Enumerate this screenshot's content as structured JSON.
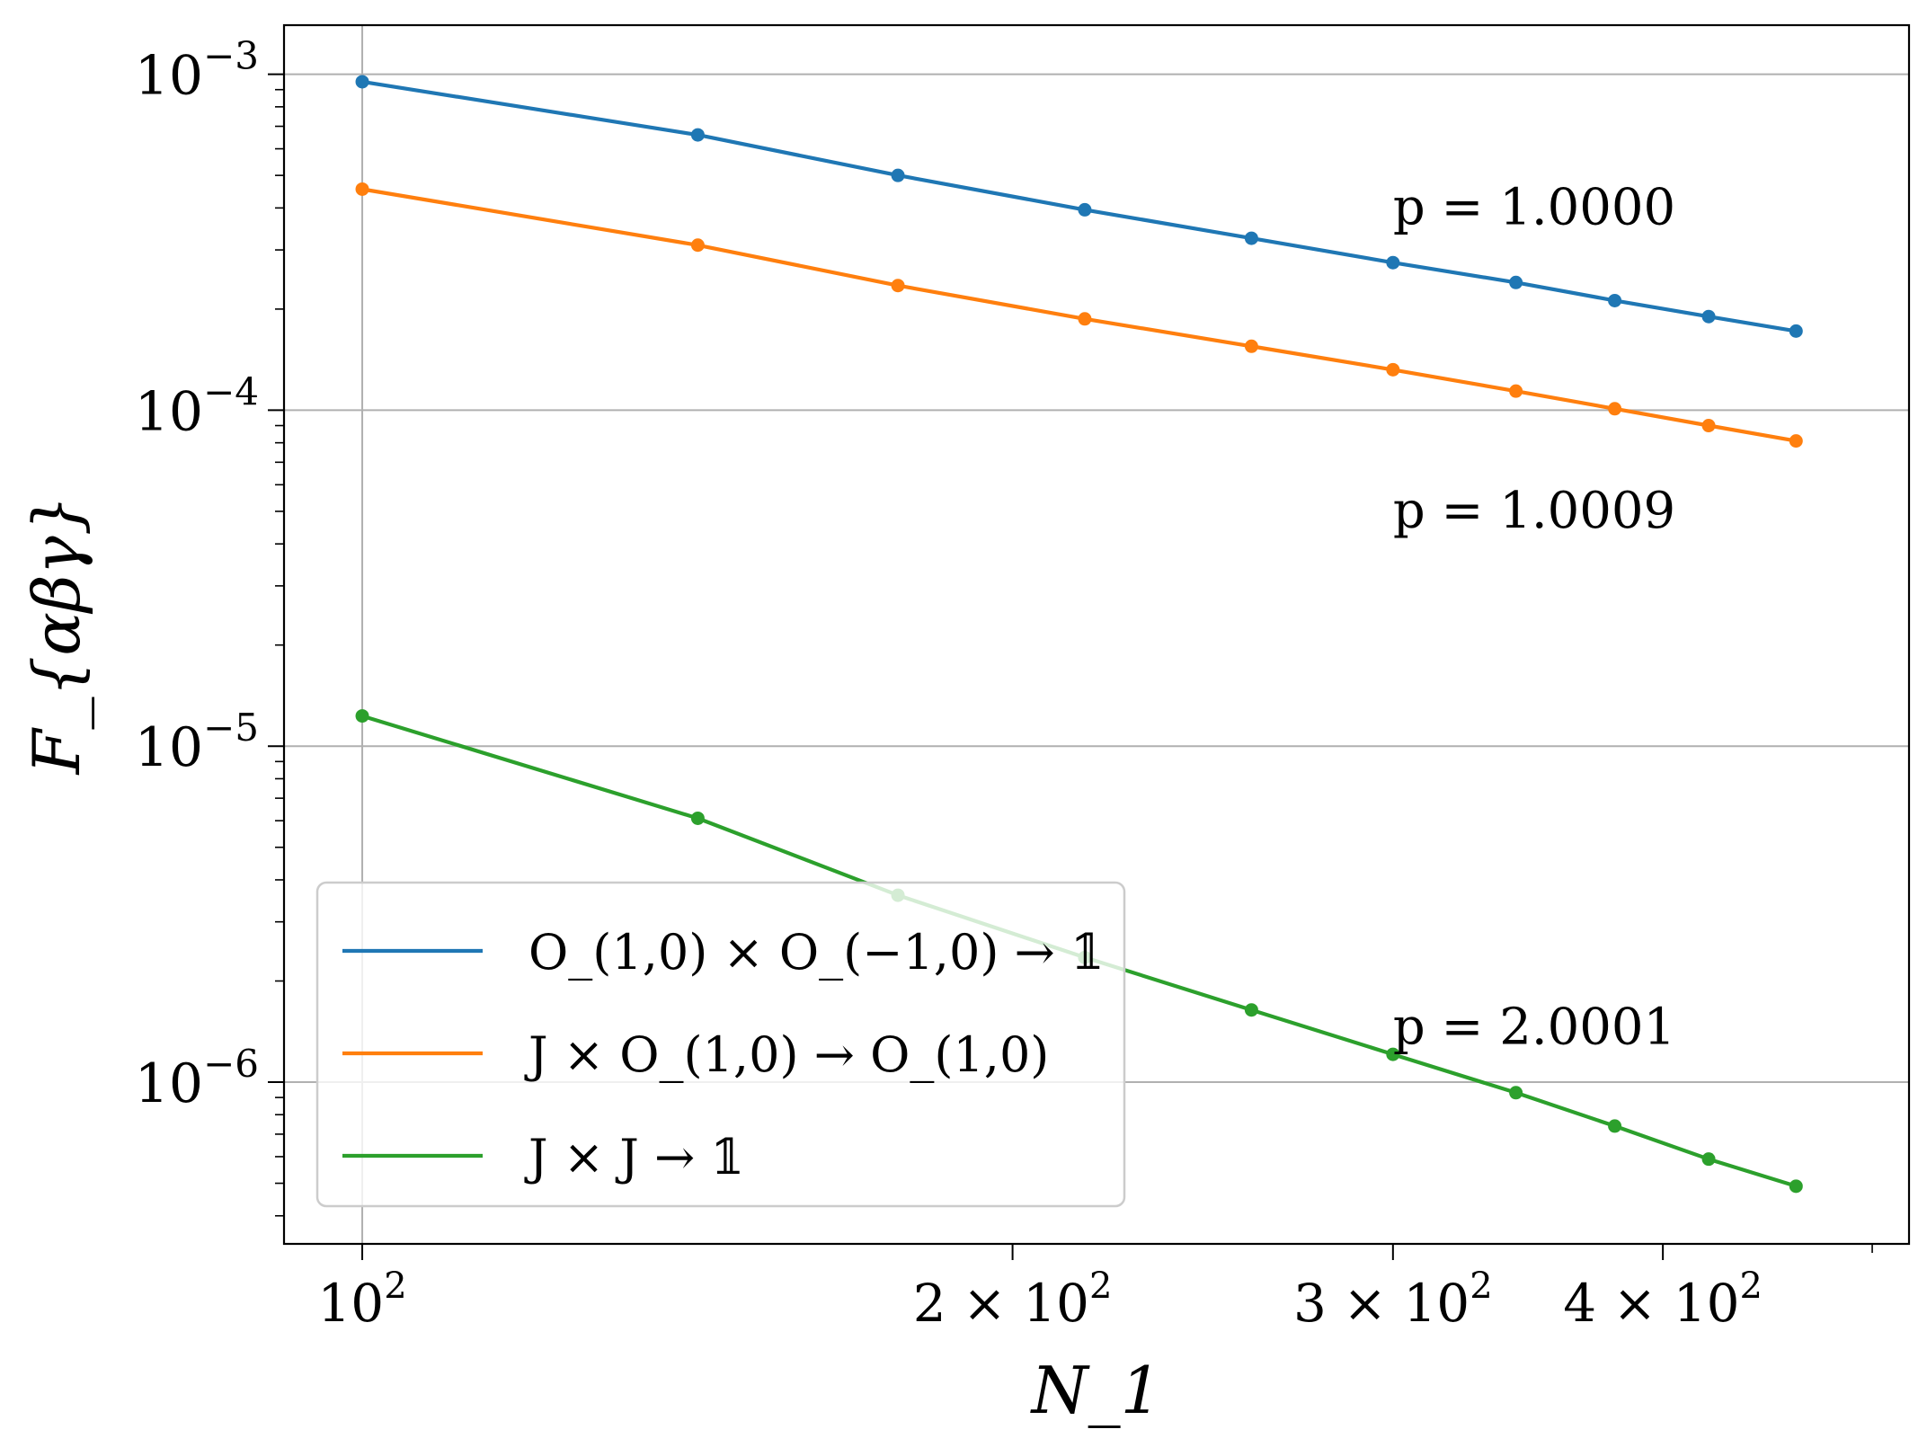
{
  "chart_data": {
    "type": "line",
    "title": "",
    "xlabel": "N_1",
    "ylabel": "F_{αβγ}",
    "x_scale": "log",
    "y_scale": "log",
    "xlim": [
      92,
      520
    ],
    "ylim": [
      3.3e-07,
      0.0014
    ],
    "grid": "major",
    "legend_position": "lower-left",
    "x_ticks": [
      {
        "value": 100,
        "base": "10",
        "exp": "2",
        "coef": ""
      },
      {
        "value": 200,
        "base": "10",
        "exp": "2",
        "coef": "2 × "
      },
      {
        "value": 300,
        "base": "10",
        "exp": "2",
        "coef": "3 × "
      },
      {
        "value": 400,
        "base": "10",
        "exp": "2",
        "coef": "4 × "
      }
    ],
    "y_ticks": [
      {
        "value": 0.001,
        "base": "10",
        "exp": "−3"
      },
      {
        "value": 0.0001,
        "base": "10",
        "exp": "−4"
      },
      {
        "value": 1e-05,
        "base": "10",
        "exp": "−5"
      },
      {
        "value": 1e-06,
        "base": "10",
        "exp": "−6"
      }
    ],
    "x": [
      100,
      143,
      177,
      216,
      258,
      300,
      342,
      380,
      420,
      461
    ],
    "series": [
      {
        "name": "O_(1,0) × O_(−1,0) → 𝟙",
        "color": "#1f77b4",
        "values": [
          0.00095,
          0.00066,
          0.0005,
          0.000395,
          0.000325,
          0.000275,
          0.00024,
          0.000212,
          0.00019,
          0.000172
        ]
      },
      {
        "name": "J × O_(1,0) → O_(1,0)",
        "color": "#ff7f0e",
        "values": [
          0.000455,
          0.00031,
          0.000235,
          0.000187,
          0.000155,
          0.000132,
          0.000114,
          0.000101,
          9e-05,
          8.1e-05
        ]
      },
      {
        "name": "J × J → 𝟙",
        "color": "#2ca02c",
        "values": [
          1.23e-05,
          6.1e-06,
          3.6e-06,
          2.35e-06,
          1.64e-06,
          1.21e-06,
          9.3e-07,
          7.4e-07,
          5.9e-07,
          4.9e-07
        ]
      }
    ],
    "annotations": [
      {
        "label": "p = 1.0000",
        "x": 300,
        "y": 0.0004
      },
      {
        "label": "p = 1.0009",
        "x": 300,
        "y": 5e-05
      },
      {
        "label": "p = 2.0001",
        "x": 300,
        "y": 1.45e-06
      }
    ]
  }
}
